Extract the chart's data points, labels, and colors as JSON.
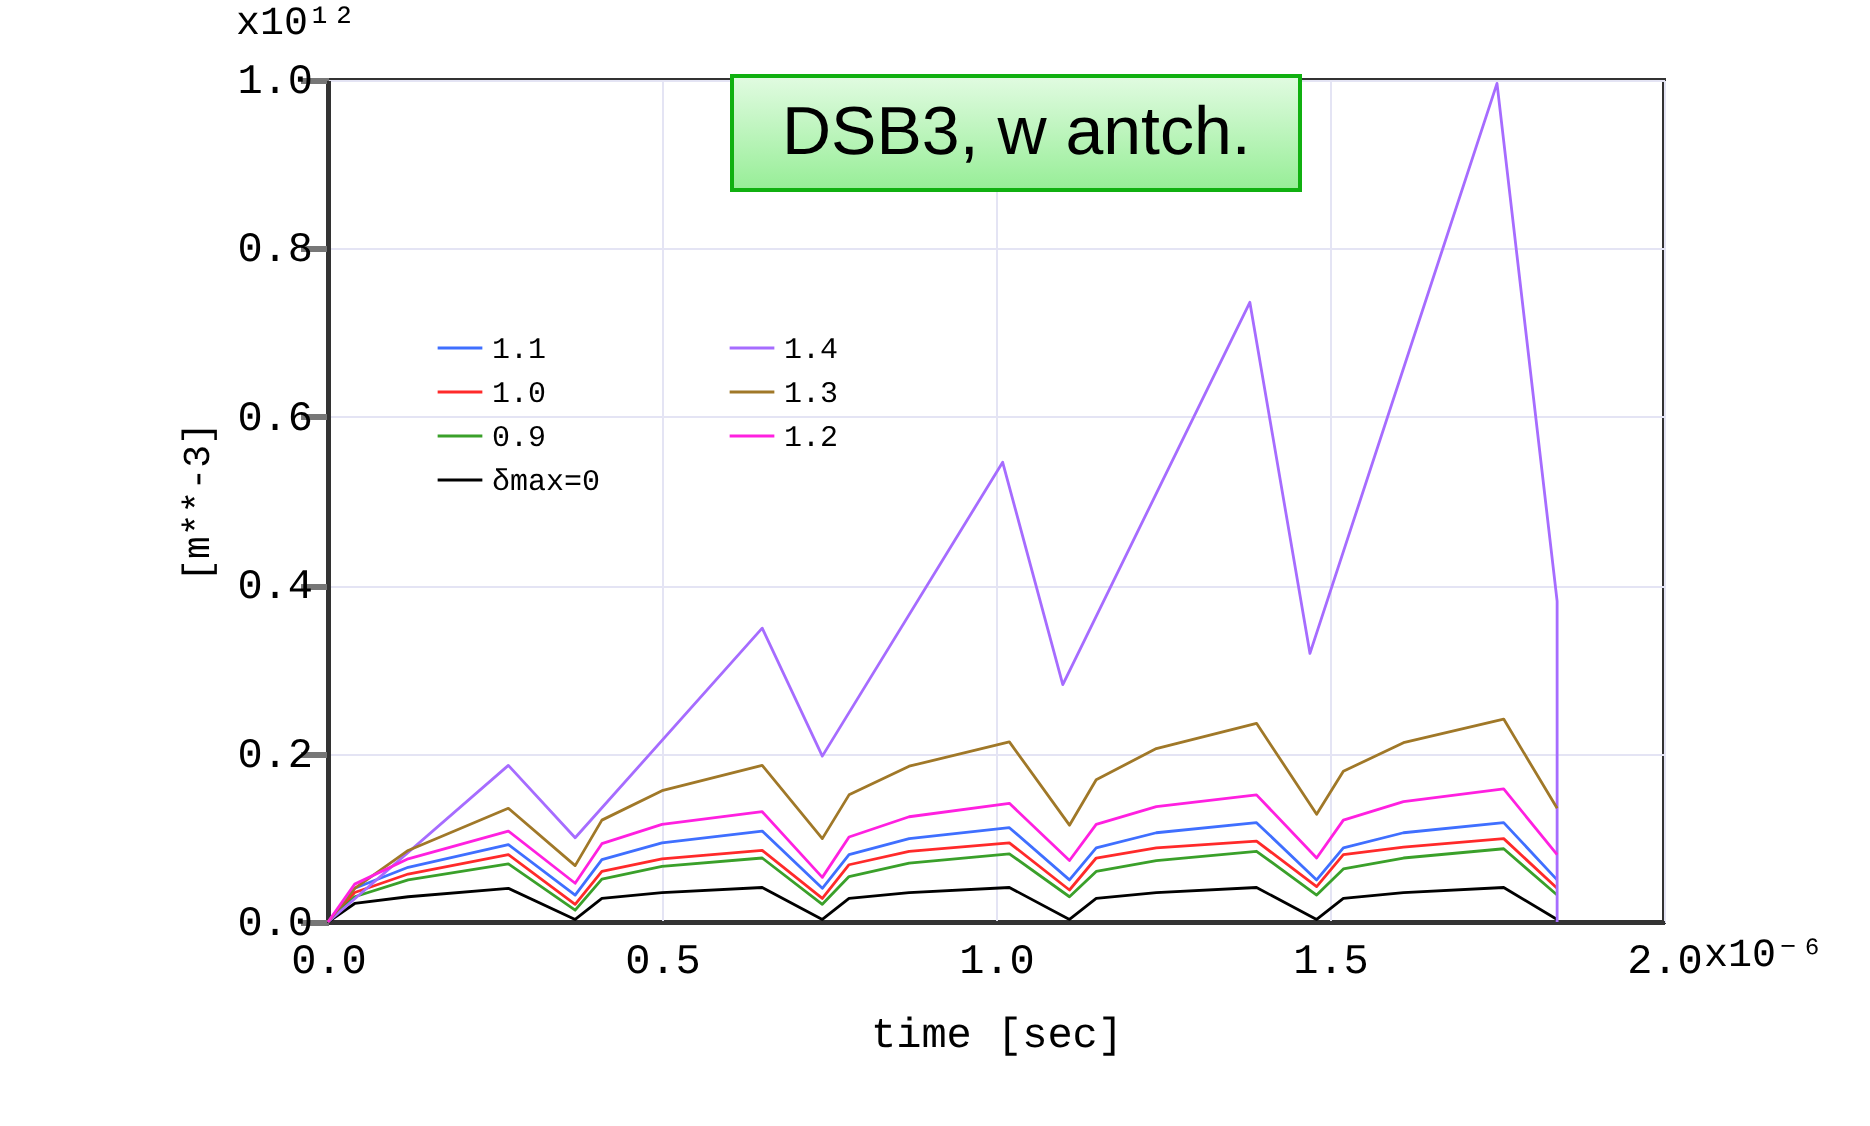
{
  "chart_data": {
    "type": "line",
    "xlabel": "time [sec]",
    "ylabel": "[m**-3]",
    "annotations": [
      "DSB3, w antch.",
      "x10⁻⁶",
      "x10¹²"
    ],
    "x": [
      0,
      0.04,
      0.12,
      0.27,
      0.37,
      0.41,
      0.5,
      0.65,
      0.74,
      0.78,
      0.87,
      1.02,
      1.11,
      1.15,
      1.24,
      1.39,
      1.48,
      1.52,
      1.61,
      1.76,
      1.84
    ],
    "series": [
      {
        "name": "1.1",
        "color": "#3f6fff",
        "values": [
          0,
          0.04,
          0.065,
          0.092,
          0.032,
          0.074,
          0.094,
          0.108,
          0.04,
          0.08,
          0.099,
          0.112,
          0.05,
          0.088,
          0.106,
          0.118,
          0.05,
          0.088,
          0.106,
          0.118,
          0.05
        ]
      },
      {
        "name": "1.0",
        "color": "#ff2a2a",
        "values": [
          0,
          0.035,
          0.057,
          0.08,
          0.021,
          0.06,
          0.075,
          0.085,
          0.028,
          0.068,
          0.084,
          0.094,
          0.038,
          0.076,
          0.088,
          0.096,
          0.042,
          0.08,
          0.089,
          0.099,
          0.04
        ]
      },
      {
        "name": "0.9",
        "color": "#3aa02a",
        "values": [
          0,
          0.03,
          0.05,
          0.069,
          0.014,
          0.051,
          0.066,
          0.076,
          0.021,
          0.054,
          0.07,
          0.081,
          0.03,
          0.06,
          0.073,
          0.084,
          0.032,
          0.063,
          0.076,
          0.087,
          0.032
        ]
      },
      {
        "name": "δmax=0",
        "color": "#000000",
        "values": [
          0,
          0.022,
          0.03,
          0.04,
          0.003,
          0.028,
          0.035,
          0.041,
          0.003,
          0.028,
          0.035,
          0.041,
          0.003,
          0.028,
          0.035,
          0.041,
          0.003,
          0.028,
          0.035,
          0.041,
          0.003
        ]
      },
      {
        "name": "1.4",
        "color": "#a66cff",
        "x": [
          0,
          0.27,
          0.37,
          0.65,
          0.74,
          1.01,
          1.1,
          1.38,
          1.47,
          1.75,
          1.84,
          1.84
        ],
        "values": [
          0,
          0.186,
          0.1,
          0.349,
          0.197,
          0.546,
          0.282,
          0.736,
          0.319,
          0.996,
          0.381,
          0
        ]
      },
      {
        "name": "1.3",
        "color": "#a07828",
        "values": [
          0,
          0.04,
          0.085,
          0.135,
          0.067,
          0.121,
          0.156,
          0.186,
          0.099,
          0.151,
          0.185,
          0.214,
          0.115,
          0.169,
          0.206,
          0.236,
          0.128,
          0.179,
          0.213,
          0.241,
          0.135
        ]
      },
      {
        "name": "1.2",
        "color": "#ff20e0",
        "values": [
          0,
          0.045,
          0.075,
          0.108,
          0.046,
          0.093,
          0.116,
          0.131,
          0.053,
          0.101,
          0.125,
          0.141,
          0.073,
          0.116,
          0.137,
          0.151,
          0.076,
          0.121,
          0.143,
          0.158,
          0.08
        ]
      }
    ],
    "xlim": [
      0,
      2
    ],
    "xticks": [
      {
        "value": 0,
        "label": "0.0"
      },
      0.5,
      {
        "value": 1,
        "label": "1.0"
      },
      1.5,
      {
        "value": 2,
        "label": "2.0"
      }
    ],
    "ylim": [
      0,
      1
    ],
    "yticks": [
      {
        "value": 0,
        "label": "0.0"
      },
      0.2,
      0.4,
      0.6,
      0.8,
      {
        "value": 1,
        "label": "1.0"
      }
    ],
    "grid": true,
    "legend": "top left"
  }
}
